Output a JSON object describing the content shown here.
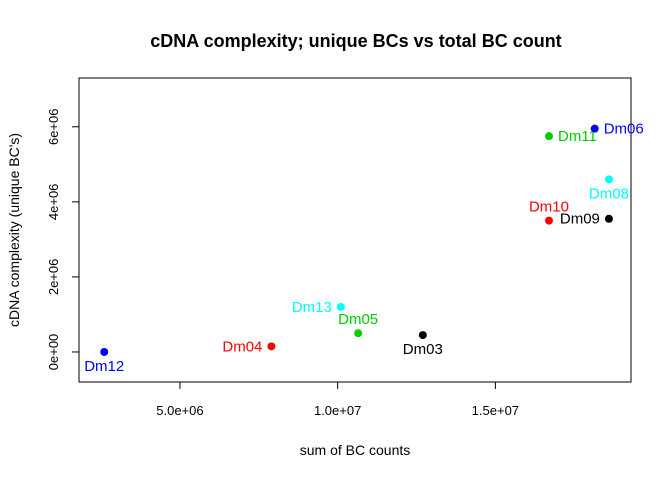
{
  "chart_data": {
    "type": "scatter",
    "title": "cDNA complexity; unique BCs vs total BC count",
    "xlabel": "sum of BC counts",
    "ylabel": "cDNA complexity (unique BC's)",
    "xlim": [
      1800000,
      19300000
    ],
    "ylim": [
      -800000,
      7300000
    ],
    "x_ticks": [
      {
        "value": 5000000,
        "label": "5.0e+06"
      },
      {
        "value": 10000000,
        "label": "1.0e+07"
      },
      {
        "value": 15000000,
        "label": "1.5e+07"
      }
    ],
    "y_ticks": [
      {
        "value": 0,
        "label": "0e+00"
      },
      {
        "value": 2000000,
        "label": "2e+06"
      },
      {
        "value": 4000000,
        "label": "4e+06"
      },
      {
        "value": 6000000,
        "label": "6e+06"
      }
    ],
    "grid": false,
    "legend": "none",
    "points": [
      {
        "label": "Dm12",
        "x": 2600000,
        "y": 0,
        "color": "#0000ff",
        "label_pos": "below"
      },
      {
        "label": "Dm04",
        "x": 7900000,
        "y": 150000,
        "color": "#ff0000",
        "label_pos": "left"
      },
      {
        "label": "Dm13",
        "x": 10100000,
        "y": 1200000,
        "color": "#00ffff",
        "label_pos": "left"
      },
      {
        "label": "Dm05",
        "x": 10650000,
        "y": 500000,
        "color": "#00cd00",
        "label_pos": "above"
      },
      {
        "label": "Dm03",
        "x": 12700000,
        "y": 450000,
        "color": "#000000",
        "label_pos": "below"
      },
      {
        "label": "Dm10",
        "x": 16700000,
        "y": 3500000,
        "color": "#ff0000",
        "label_pos": "above"
      },
      {
        "label": "Dm11",
        "x": 16700000,
        "y": 5750000,
        "color": "#00cd00",
        "label_pos": "right"
      },
      {
        "label": "Dm06",
        "x": 18150000,
        "y": 5950000,
        "color": "#0000ff",
        "label_pos": "right"
      },
      {
        "label": "Dm08",
        "x": 18600000,
        "y": 4600000,
        "color": "#00ffff",
        "label_pos": "below"
      },
      {
        "label": "Dm09",
        "x": 18600000,
        "y": 3550000,
        "color": "#000000",
        "label_pos": "left"
      }
    ]
  }
}
